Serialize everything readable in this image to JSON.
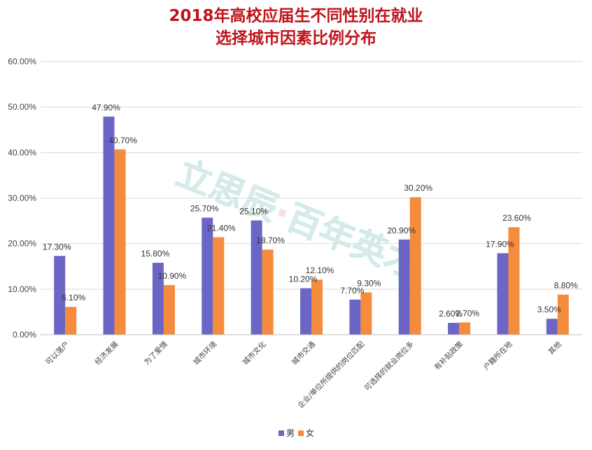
{
  "chart_data": {
    "type": "bar",
    "title_line1": "2018年高校应届生不同性别在就业",
    "title_line2": "选择城市因素比例分布",
    "categories": [
      "可以落户",
      "经济发展",
      "为了爱情",
      "城市环境",
      "城市文化",
      "城市交通",
      "企业/单位所提供的岗位匹配",
      "可选择的就业岗位多",
      "有补贴政策",
      "户籍所在地",
      "其他"
    ],
    "series": [
      {
        "name": "男",
        "color": "#6b66c5",
        "values": [
          17.3,
          47.9,
          15.8,
          25.7,
          25.1,
          10.2,
          7.7,
          20.9,
          2.6,
          17.9,
          3.5
        ]
      },
      {
        "name": "女",
        "color": "#f58b3c",
        "values": [
          6.1,
          40.7,
          10.9,
          21.4,
          18.7,
          12.1,
          9.3,
          30.2,
          2.7,
          23.6,
          8.8
        ]
      }
    ],
    "data_labels": [
      [
        "17.30%",
        "47.90%",
        "15.80%",
        "25.70%",
        "25.10%",
        "10.20%",
        "7.70%",
        "20.90%",
        "2.60%",
        "17.90%",
        "3.50%"
      ],
      [
        "6.10%",
        "40.70%",
        "10.90%",
        "21.40%",
        "18.70%",
        "12.10%",
        "9.30%",
        "30.20%",
        "2.70%",
        "23.60%",
        "8.80%"
      ]
    ],
    "yticks": [
      "0.00%",
      "10.00%",
      "20.00%",
      "30.00%",
      "40.00%",
      "50.00%",
      "60.00%"
    ],
    "ylim": [
      0,
      60
    ],
    "grid": true,
    "legend_position": "bottom-center",
    "watermark": "立思辰·百年英才",
    "title_color": "#c0131b"
  }
}
